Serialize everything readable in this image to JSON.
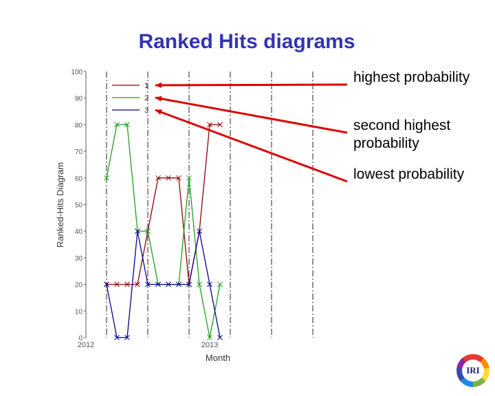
{
  "title": "Ranked Hits diagrams",
  "callouts": [
    {
      "text": "highest probability",
      "target_series": "1"
    },
    {
      "text": "second highest probability",
      "target_series": "2"
    },
    {
      "text": "lowest probability",
      "target_series": "3"
    }
  ],
  "logo": {
    "text": "IRI"
  },
  "colors": {
    "title": "#3333b3",
    "arrow": "#dd0000",
    "series1": "#8b0000",
    "series2": "#1e9e1e",
    "series3": "#00008b"
  },
  "chart_data": {
    "type": "line",
    "ylabel": "Ranked-Hits Diagram",
    "xlabel": "Month",
    "ylim": [
      0,
      100
    ],
    "yticks": [
      0,
      10,
      20,
      30,
      40,
      50,
      60,
      70,
      80,
      90,
      100
    ],
    "xlim": [
      0,
      23
    ],
    "xtick_labels": [
      {
        "x": 0,
        "label": "2012"
      },
      {
        "x": 12,
        "label": "2013"
      }
    ],
    "vertical_dash_x": [
      2,
      6,
      10,
      14,
      18,
      22
    ],
    "grid": false,
    "legend_position": "top-left",
    "x": [
      2,
      3,
      4,
      5,
      6,
      7,
      8,
      9,
      10,
      11,
      12,
      13,
      14
    ],
    "series": [
      {
        "name": "1",
        "color": "#8b0000",
        "values": [
          20,
          20,
          20,
          20,
          40,
          60,
          60,
          60,
          20,
          40,
          80,
          80,
          null
        ]
      },
      {
        "name": "2",
        "color": "#1e9e1e",
        "values": [
          60,
          80,
          80,
          40,
          40,
          20,
          20,
          20,
          60,
          20,
          0,
          20,
          null
        ]
      },
      {
        "name": "3",
        "color": "#00008b",
        "values": [
          20,
          0,
          0,
          40,
          20,
          20,
          20,
          20,
          20,
          40,
          20,
          0,
          null
        ]
      }
    ]
  }
}
